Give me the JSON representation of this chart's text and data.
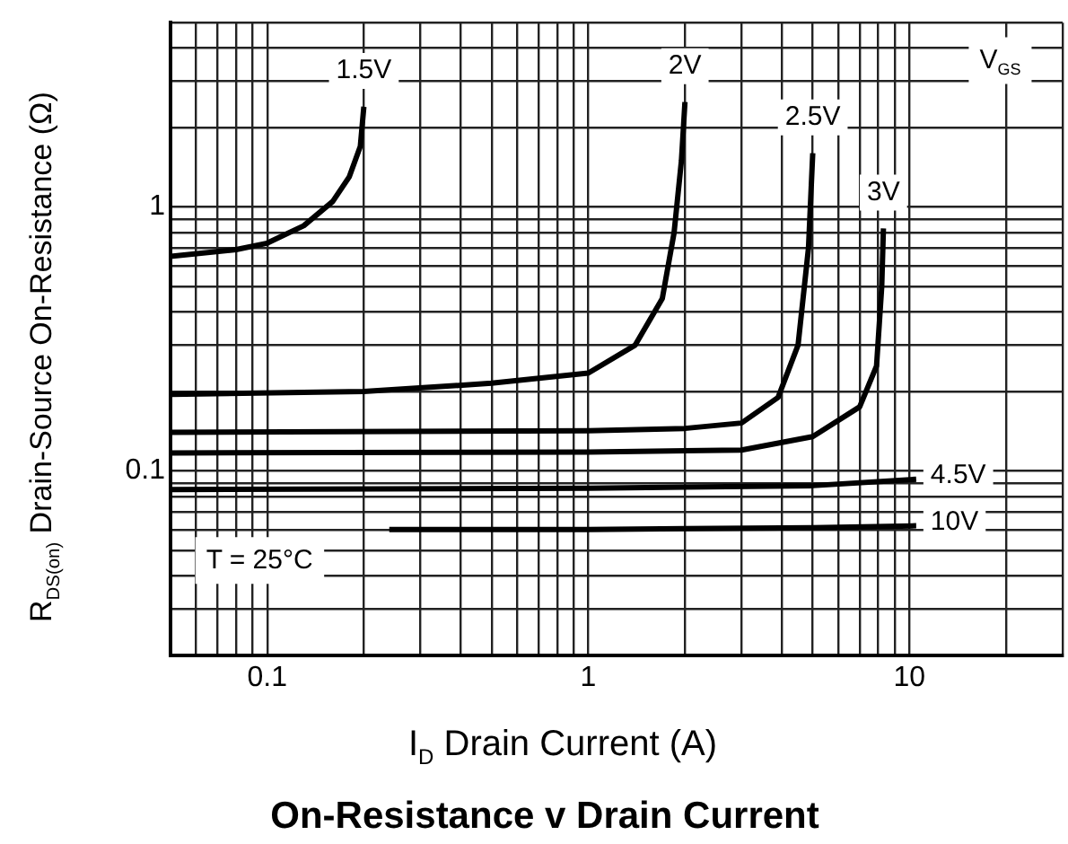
{
  "chart_data": {
    "type": "line",
    "title": "On-Resistance v Drain Current",
    "xlabel": "I$_{D}$ Drain Current (A)",
    "ylabel": "R$_{DS(on)}$ Drain-Source On-Resistance (Ω)",
    "log": "xy",
    "grid": true,
    "legend": false,
    "xlim": [
      0.05,
      30
    ],
    "ylim": [
      0.02,
      5
    ],
    "xticks": [
      {
        "value": 0.05,
        "label": null
      },
      {
        "value": 0.06,
        "label": null
      },
      {
        "value": 0.07,
        "label": null
      },
      {
        "value": 0.08,
        "label": null
      },
      {
        "value": 0.09,
        "label": null
      },
      0.1,
      {
        "value": 0.2,
        "label": null
      },
      {
        "value": 0.3,
        "label": null
      },
      {
        "value": 0.4,
        "label": null
      },
      {
        "value": 0.5,
        "label": null
      },
      {
        "value": 0.6,
        "label": null
      },
      {
        "value": 0.7,
        "label": null
      },
      {
        "value": 0.8,
        "label": null
      },
      {
        "value": 0.9,
        "label": null
      },
      1,
      {
        "value": 2,
        "label": null
      },
      {
        "value": 3,
        "label": null
      },
      {
        "value": 4,
        "label": null
      },
      {
        "value": 5,
        "label": null
      },
      {
        "value": 6,
        "label": null
      },
      {
        "value": 7,
        "label": null
      },
      {
        "value": 8,
        "label": null
      },
      {
        "value": 9,
        "label": null
      },
      10,
      {
        "value": 20,
        "label": null
      },
      {
        "value": 30,
        "label": null
      }
    ],
    "yticks": [
      {
        "value": 0.02,
        "label": null
      },
      {
        "value": 0.03,
        "label": null
      },
      {
        "value": 0.04,
        "label": null
      },
      {
        "value": 0.05,
        "label": null
      },
      {
        "value": 0.06,
        "label": null
      },
      {
        "value": 0.07,
        "label": null
      },
      {
        "value": 0.08,
        "label": null
      },
      {
        "value": 0.09,
        "label": null
      },
      0.1,
      {
        "value": 0.2,
        "label": null
      },
      {
        "value": 0.3,
        "label": null
      },
      {
        "value": 0.4,
        "label": null
      },
      {
        "value": 0.5,
        "label": null
      },
      {
        "value": 0.6,
        "label": null
      },
      {
        "value": 0.7,
        "label": null
      },
      {
        "value": 0.8,
        "label": null
      },
      {
        "value": 0.9,
        "label": null
      },
      1,
      {
        "value": 2,
        "label": null
      },
      {
        "value": 3,
        "label": null
      },
      {
        "value": 4,
        "label": null
      },
      {
        "value": 5,
        "label": null
      }
    ],
    "series": [
      {
        "name": "1.5V",
        "color": "#000000",
        "x": [
          0.05,
          0.08,
          0.1,
          0.13,
          0.16,
          0.18,
          0.195,
          0.2
        ],
        "values": [
          0.65,
          0.69,
          0.73,
          0.85,
          1.05,
          1.3,
          1.7,
          2.4
        ]
      },
      {
        "name": "2V",
        "color": "#000000",
        "x": [
          0.05,
          0.2,
          0.5,
          1,
          1.4,
          1.7,
          1.85,
          1.95,
          2
        ],
        "values": [
          0.195,
          0.2,
          0.215,
          0.235,
          0.3,
          0.45,
          0.8,
          1.5,
          2.5
        ]
      },
      {
        "name": "2.5V",
        "color": "#000000",
        "x": [
          0.05,
          1,
          2,
          3,
          3.9,
          4.5,
          4.85,
          5
        ],
        "values": [
          0.14,
          0.142,
          0.145,
          0.152,
          0.19,
          0.3,
          0.7,
          1.6
        ]
      },
      {
        "name": "3V",
        "color": "#000000",
        "x": [
          0.05,
          1,
          3,
          5,
          7,
          7.9,
          8.2,
          8.3
        ],
        "values": [
          0.117,
          0.118,
          0.12,
          0.135,
          0.175,
          0.25,
          0.5,
          0.83
        ]
      },
      {
        "name": "4.5V",
        "color": "#000000",
        "x": [
          0.05,
          1,
          5,
          10.5
        ],
        "values": [
          0.085,
          0.086,
          0.088,
          0.093
        ]
      },
      {
        "name": "10V",
        "color": "#000000",
        "x": [
          0.24,
          1,
          5,
          10.5
        ],
        "values": [
          0.06,
          0.06,
          0.061,
          0.062
        ]
      }
    ],
    "annotations": [
      "V$_{GS}$",
      "T = 25°C"
    ]
  }
}
